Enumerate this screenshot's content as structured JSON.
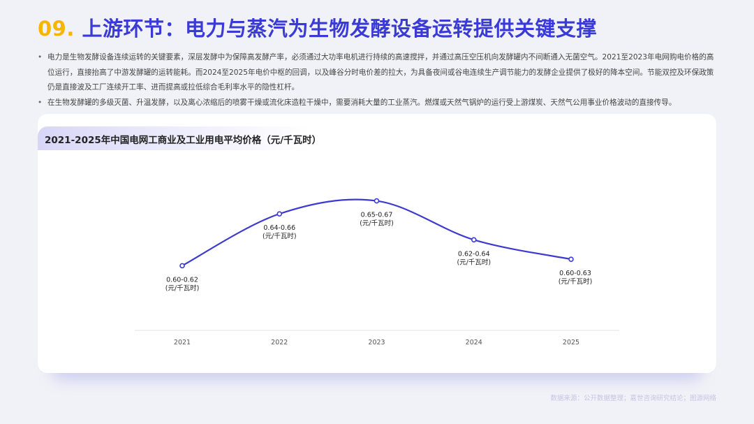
{
  "header": {
    "number": "09.",
    "title": "上游环节：电力与蒸汽为生物发酵设备运转提供关键支撑"
  },
  "bullets": [
    "电力是生物发酵设备连续运转的关键要素，深层发酵中为保障高发酵产率，必须通过大功率电机进行持续的高速搅拌，并通过高压空压机向发酵罐内不间断通入无菌空气。2021至2023年电网购电价格的高位运行，直接抬高了中游发酵罐的运转能耗。而2024至2025年电价中枢的回调，以及峰谷分时电价差的拉大，为具备夜间或谷电连续生产调节能力的发酵企业提供了极好的降本空间。节能双控及环保政策仍是直接波及工厂连续开工率、进而提高或拉低综合毛利率水平的隐性杠杆。",
    "在生物发酵罐的多级灭菌、升温发酵，以及离心浓缩后的喷雾干燥或流化床造粒干燥中，需要消耗大量的工业蒸汽。燃煤或天然气锅炉的运行受上游煤炭、天然气公用事业价格波动的直接传导。"
  ],
  "chart_data": {
    "type": "line",
    "title": "2021-2025年中国电网工商业及工业用电平均价格（元/千瓦时）",
    "categories": [
      "2021",
      "2022",
      "2023",
      "2024",
      "2025"
    ],
    "series": [
      {
        "values": [
          0.61,
          0.65,
          0.66,
          0.63,
          0.615
        ],
        "labels": [
          "0.60-0.62",
          "0.64-0.66",
          "0.65-0.67",
          "0.62-0.64",
          "0.60-0.63"
        ]
      }
    ],
    "unit_label": "(元/千瓦时)",
    "ylim": [
      0.6,
      0.67
    ],
    "line_color": "#3d3ad0",
    "grid": false
  },
  "footer": {
    "source": "数据来源：公开数据整理；嘉世咨询研究结论；图源网络"
  },
  "colors": {
    "accent_number": "#f7b500",
    "accent_title": "#3a3ad6"
  }
}
